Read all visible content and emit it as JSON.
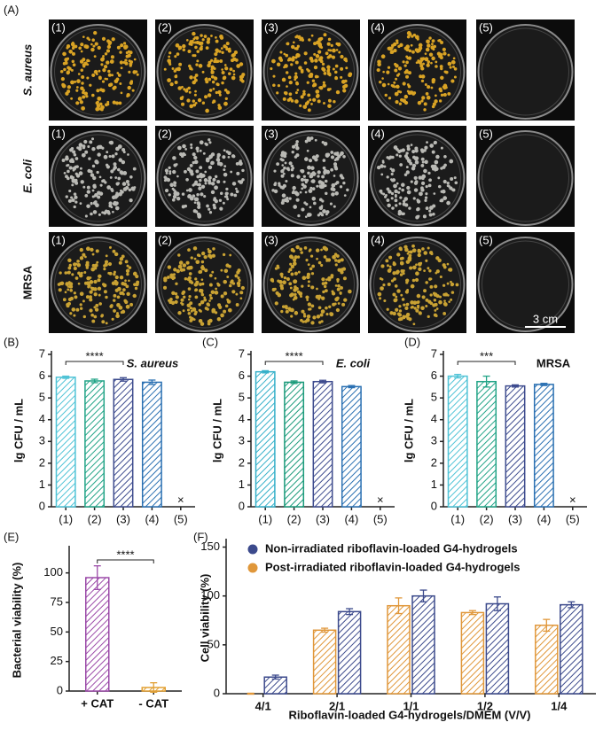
{
  "panel_a": {
    "label": "(A)",
    "scale_bar": "3 cm",
    "rows": [
      {
        "name": "S. aureus",
        "italic": true,
        "colony_color": "#d9a324",
        "dishes": [
          "(1)",
          "(2)",
          "(3)",
          "(4)",
          "(5)"
        ]
      },
      {
        "name": "E. coli",
        "italic": true,
        "colony_color": "#b9b9b4",
        "dishes": [
          "(1)",
          "(2)",
          "(3)",
          "(4)",
          "(5)"
        ]
      },
      {
        "name": "MRSA",
        "italic": false,
        "colony_color": "#c9a233",
        "dishes": [
          "(1)",
          "(2)",
          "(3)",
          "(4)",
          "(5)"
        ]
      }
    ]
  },
  "chart_data": [
    {
      "type": "bar",
      "panel": "(B)",
      "title": "S. aureus",
      "title_italic": true,
      "ylabel": "lg CFU / mL",
      "categories": [
        "(1)",
        "(2)",
        "(3)",
        "(4)",
        "(5)"
      ],
      "values": [
        5.95,
        5.78,
        5.85,
        5.72,
        null
      ],
      "errors": [
        0.05,
        0.08,
        0.08,
        0.1,
        null
      ],
      "colors": [
        "#4fc3d6",
        "#22a487",
        "#3d4b8e",
        "#2a70b2",
        "#333333"
      ],
      "no_growth_label": "×",
      "ylim": [
        0,
        7
      ],
      "yticks": [
        0,
        1,
        2,
        3,
        4,
        5,
        6,
        7
      ],
      "significance": {
        "label": "****",
        "from": 0,
        "to": 2
      }
    },
    {
      "type": "bar",
      "panel": "(C)",
      "title": "E. coli",
      "title_italic": true,
      "ylabel": "lg CFU / mL",
      "categories": [
        "(1)",
        "(2)",
        "(3)",
        "(4)",
        "(5)"
      ],
      "values": [
        6.2,
        5.72,
        5.75,
        5.52,
        null
      ],
      "errors": [
        0.05,
        0.06,
        0.06,
        0.05,
        null
      ],
      "colors": [
        "#35b0c9",
        "#1a9a7a",
        "#3d4b8e",
        "#2a70b2",
        "#333333"
      ],
      "no_growth_label": "×",
      "ylim": [
        0,
        7
      ],
      "yticks": [
        0,
        1,
        2,
        3,
        4,
        5,
        6,
        7
      ],
      "significance": {
        "label": "****",
        "from": 0,
        "to": 2
      }
    },
    {
      "type": "bar",
      "panel": "(D)",
      "title": "MRSA",
      "title_italic": false,
      "ylabel": "lg CFU / mL",
      "categories": [
        "(1)",
        "(2)",
        "(3)",
        "(4)",
        "(5)"
      ],
      "values": [
        6.0,
        5.75,
        5.55,
        5.62,
        null
      ],
      "errors": [
        0.08,
        0.25,
        0.05,
        0.05,
        null
      ],
      "colors": [
        "#4fc3d6",
        "#22a487",
        "#3d4b8e",
        "#2a70b2",
        "#333333"
      ],
      "no_growth_label": "×",
      "ylim": [
        0,
        7
      ],
      "yticks": [
        0,
        1,
        2,
        3,
        4,
        5,
        6,
        7
      ],
      "significance": {
        "label": "***",
        "from": 0,
        "to": 2
      }
    },
    {
      "type": "bar",
      "panel": "(E)",
      "ylabel": "Bacterial viability (%)",
      "categories": [
        "+ CAT",
        "- CAT"
      ],
      "values": [
        96,
        3
      ],
      "errors": [
        10,
        4
      ],
      "colors": [
        "#9b4aa8",
        "#e2a033"
      ],
      "ylim": [
        0,
        120
      ],
      "yticks": [
        0,
        25,
        50,
        75,
        100
      ],
      "significance": {
        "label": "****",
        "from": 0,
        "to": 1
      }
    },
    {
      "type": "grouped_bar",
      "panel": "(F)",
      "ylabel": "Cell viability (%)",
      "xlabel": "Riboflavin-loaded G4-hydrogels/DMEM (V/V)",
      "categories": [
        "4/1",
        "2/1",
        "1/1",
        "1/2",
        "1/4"
      ],
      "bar_order": [
        1,
        0
      ],
      "series": [
        {
          "name": "Non-irradiated riboflavin-loaded G4-hydrogels",
          "color": "#3c4a8c",
          "values": [
            17,
            84,
            100,
            92,
            91
          ],
          "errors": [
            2,
            3,
            6,
            7,
            3
          ]
        },
        {
          "name": "Post-irradiated riboflavin-loaded G4-hydrogels",
          "color": "#e0973a",
          "values": [
            0,
            65,
            90,
            83,
            70
          ],
          "errors": [
            0.5,
            2,
            8,
            2,
            6
          ]
        }
      ],
      "ylim": [
        0,
        155
      ],
      "yticks": [
        0,
        50,
        100,
        150
      ]
    }
  ]
}
